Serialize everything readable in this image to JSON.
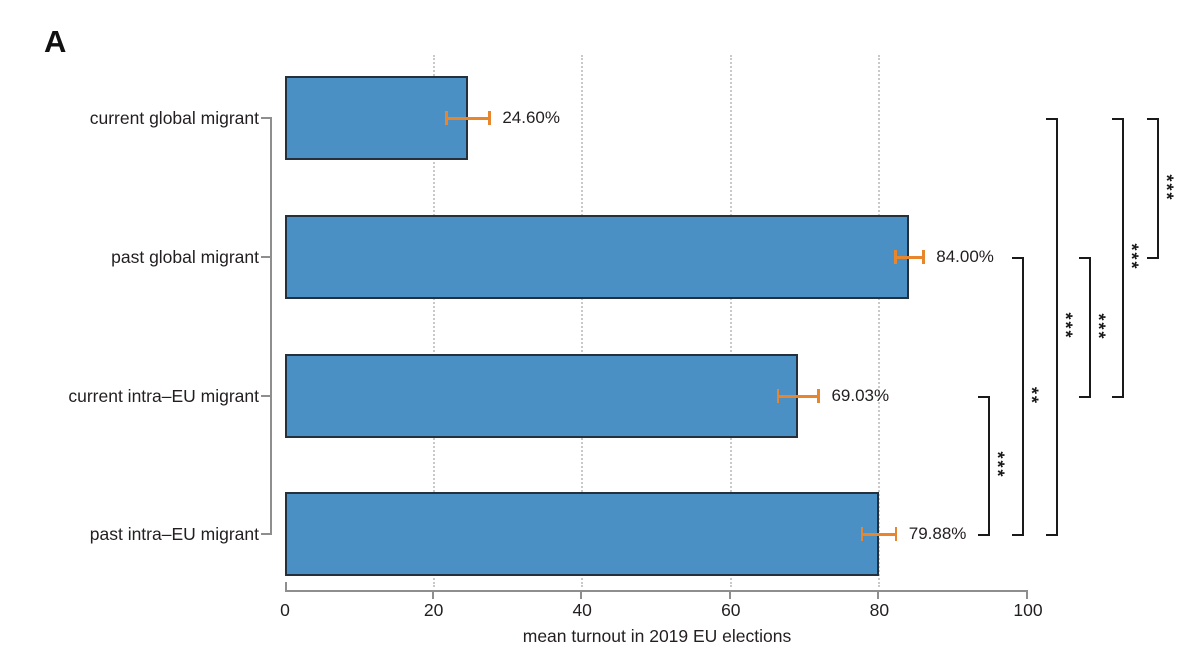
{
  "panel_label": "A",
  "colors": {
    "bar_fill": "#4A90C4",
    "bar_border": "#24303C",
    "error_bar": "#E8862D",
    "grid": "#C9C9C9",
    "axis": "#8E8E8E",
    "text": "#231F20",
    "significance": "#1A1A1A"
  },
  "chart_data": {
    "type": "bar",
    "orientation": "horizontal",
    "title": "",
    "xlabel": "mean turnout in 2019 EU elections",
    "xlim": [
      0,
      100
    ],
    "xticks": [
      0,
      20,
      40,
      60,
      80,
      100
    ],
    "grid": "vertical dotted gridlines at 20, 40, 60, 80",
    "legend": "none",
    "categories": [
      "current global migrant",
      "past global migrant",
      "current intra–EU migrant",
      "past intra–EU migrant"
    ],
    "values": [
      24.6,
      84.0,
      69.03,
      79.88
    ],
    "value_labels": [
      "24.60%",
      "84.00%",
      "69.03%",
      "79.88%"
    ],
    "error_low": [
      21.7,
      82.1,
      66.3,
      77.6
    ],
    "error_high": [
      27.5,
      85.9,
      71.8,
      82.2
    ],
    "significance": [
      {
        "between": [
          "current intra–EU migrant",
          "past intra–EU migrant"
        ],
        "bars": [
          2,
          3
        ],
        "label": "***"
      },
      {
        "between": [
          "past global migrant",
          "past intra–EU migrant"
        ],
        "bars": [
          1,
          3
        ],
        "label": "**"
      },
      {
        "between": [
          "current global migrant",
          "past intra–EU migrant"
        ],
        "bars": [
          0,
          3
        ],
        "label": "***"
      },
      {
        "between": [
          "past global migrant",
          "current intra–EU migrant"
        ],
        "bars": [
          1,
          2
        ],
        "label": "***"
      },
      {
        "between": [
          "current global migrant",
          "current intra–EU migrant"
        ],
        "bars": [
          0,
          2
        ],
        "label": "***"
      },
      {
        "between": [
          "current global migrant",
          "past global migrant"
        ],
        "bars": [
          0,
          1
        ],
        "label": "***"
      }
    ]
  }
}
